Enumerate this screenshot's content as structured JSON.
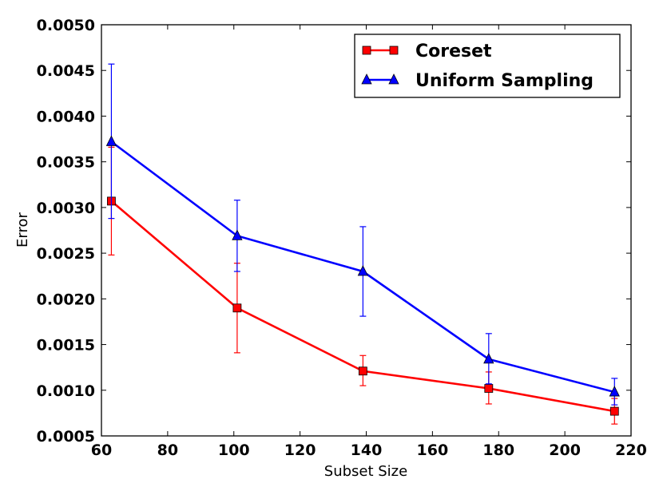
{
  "chart_data": {
    "type": "line",
    "title": "",
    "xlabel": "Subset Size",
    "ylabel": "Error",
    "xlim": [
      60,
      220
    ],
    "ylim": [
      0.0005,
      0.005
    ],
    "xticks": [
      60,
      80,
      100,
      120,
      140,
      160,
      180,
      200,
      220
    ],
    "yticks": [
      0.0005,
      0.001,
      0.0015,
      0.002,
      0.0025,
      0.003,
      0.0035,
      0.004,
      0.0045,
      0.005
    ],
    "xtick_labels": [
      "60",
      "80",
      "100",
      "120",
      "140",
      "160",
      "180",
      "200",
      "220"
    ],
    "ytick_labels": [
      "0.0005",
      "0.0010",
      "0.0015",
      "0.0020",
      "0.0025",
      "0.0030",
      "0.0035",
      "0.0040",
      "0.0045",
      "0.0050"
    ],
    "grid": false,
    "legend_position": "top-right",
    "x": [
      63,
      101,
      139,
      177,
      215
    ],
    "series": [
      {
        "name": "Coreset",
        "color": "#ff0000",
        "marker": "square",
        "values": [
          0.00307,
          0.0019,
          0.00121,
          0.00102,
          0.00077
        ],
        "err_low": [
          0.00248,
          0.00141,
          0.00105,
          0.00085,
          0.00063
        ],
        "err_high": [
          0.00366,
          0.00239,
          0.00138,
          0.0012,
          0.00091
        ]
      },
      {
        "name": "Uniform Sampling",
        "color": "#0000ff",
        "marker": "triangle",
        "values": [
          0.00372,
          0.00269,
          0.0023,
          0.00134,
          0.00098
        ],
        "err_low": [
          0.00288,
          0.0023,
          0.00181,
          0.00107,
          0.00084
        ],
        "err_high": [
          0.00457,
          0.00308,
          0.00279,
          0.00162,
          0.00113
        ]
      }
    ]
  }
}
